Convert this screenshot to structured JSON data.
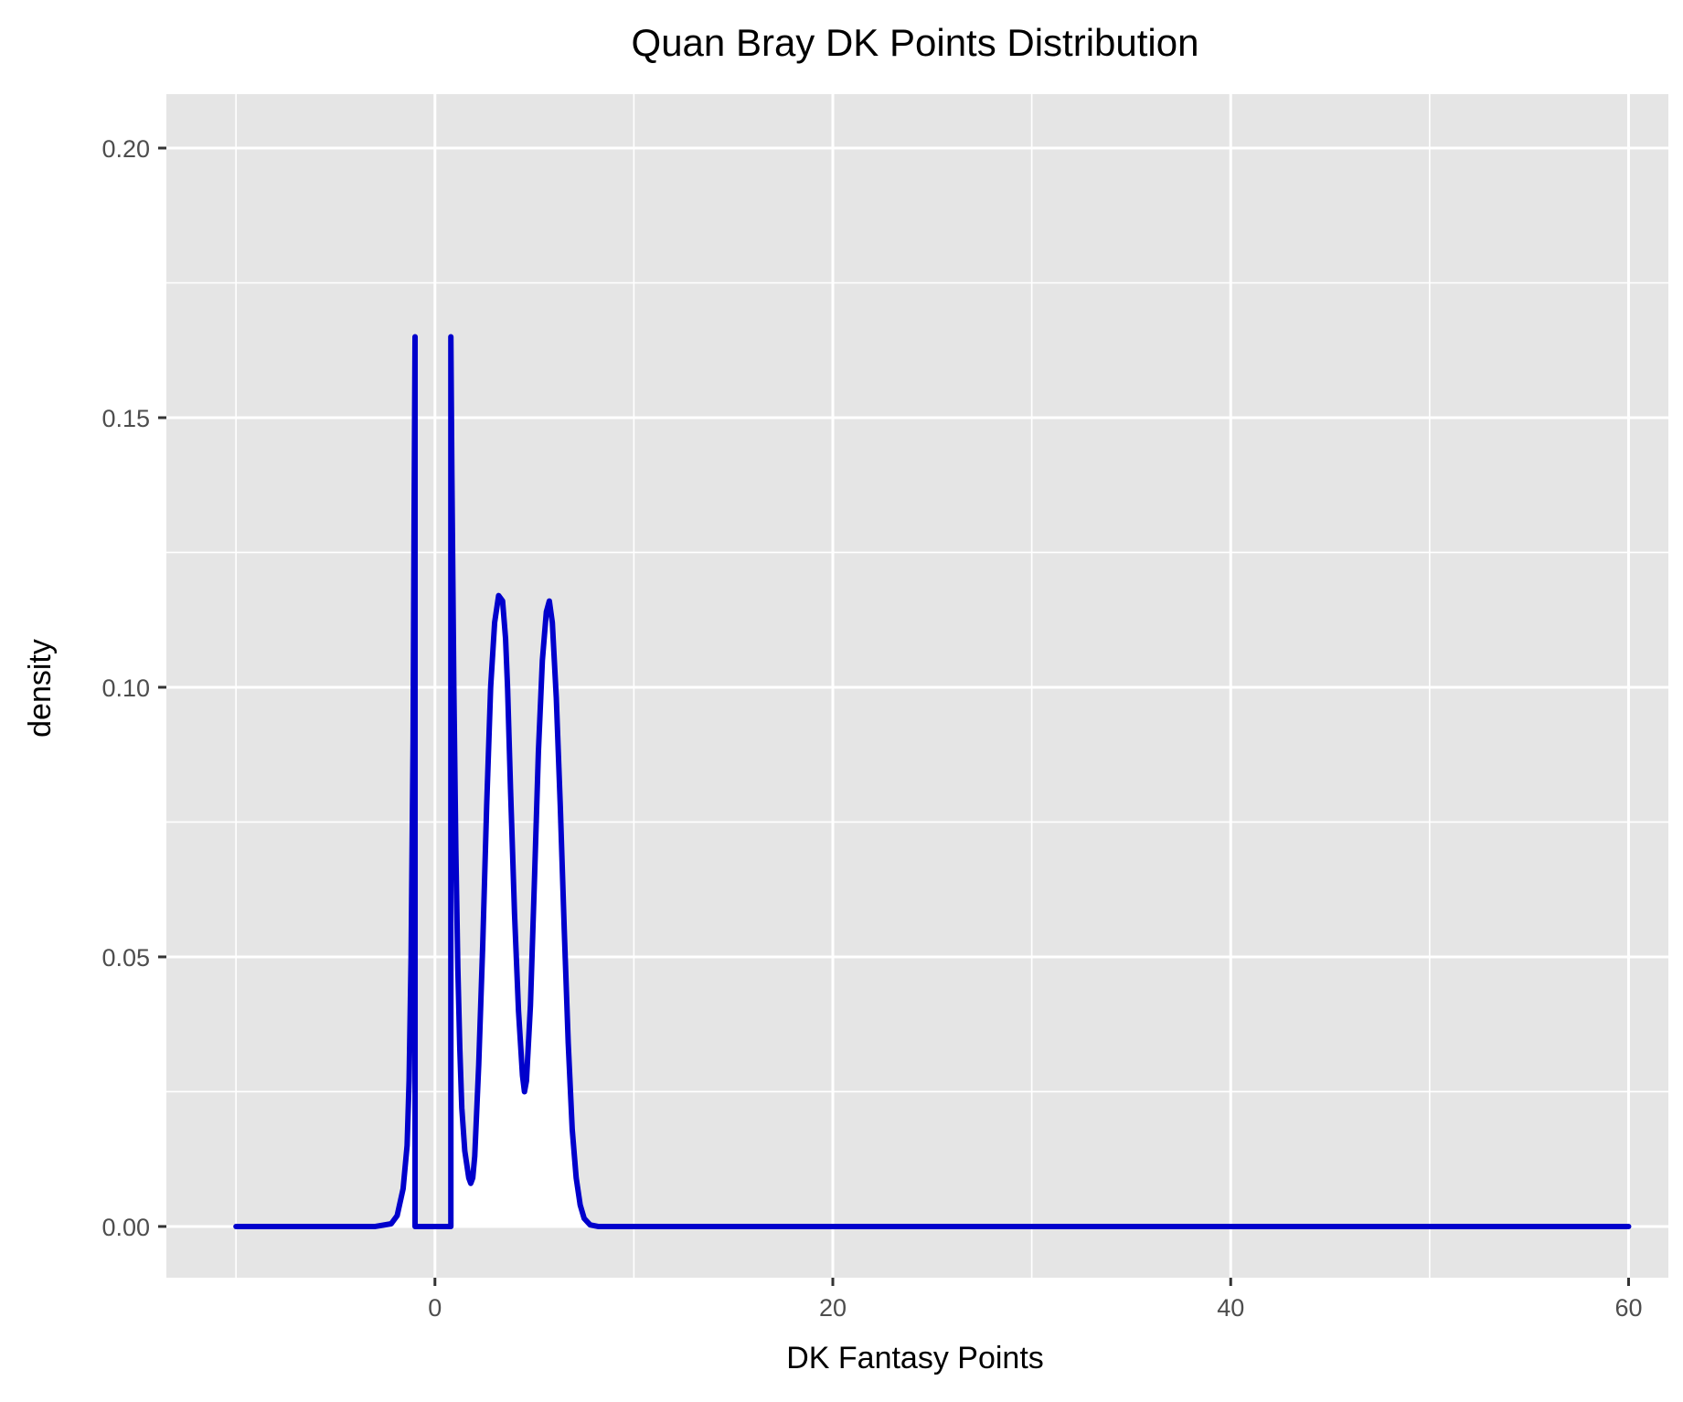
{
  "chart_data": {
    "type": "area",
    "title": "Quan Bray DK Points Distribution",
    "xlabel": "DK Fantasy Points",
    "ylabel": "density",
    "xlim": [
      -13.5,
      62
    ],
    "ylim": [
      -0.0095,
      0.21
    ],
    "x_ticks": [
      0,
      20,
      40,
      60
    ],
    "x_tick_labels": [
      "0",
      "20",
      "40",
      "60"
    ],
    "x_minor_ticks": [
      -10,
      10,
      30,
      50
    ],
    "y_ticks": [
      0.0,
      0.05,
      0.1,
      0.15,
      0.2
    ],
    "y_tick_labels": [
      "0.00",
      "0.05",
      "0.10",
      "0.15",
      "0.20"
    ],
    "y_minor_ticks": [
      0.025,
      0.075,
      0.125,
      0.175
    ],
    "grid": true,
    "legend": "none",
    "colors": {
      "panel_background": "#e5e5e5",
      "grid": "#ffffff",
      "line": "#0000cc",
      "fill": "#ffffff",
      "tick_text": "#4d4d4d",
      "tick_mark": "#333333"
    },
    "series": [
      {
        "x": [
          -10,
          -3,
          -2.2,
          -1.9,
          -1.6,
          -1.4,
          -1.3,
          -1.2,
          -1.1,
          -1.05,
          -1.0,
          -1.0,
          0.8,
          0.8,
          0.85,
          0.95,
          1.05,
          1.15,
          1.25,
          1.35,
          1.5,
          1.7,
          1.8,
          1.9,
          2.0,
          2.2,
          2.4,
          2.6,
          2.8,
          3.0,
          3.2,
          3.4,
          3.55,
          3.65,
          3.8,
          4.0,
          4.2,
          4.4,
          4.5,
          4.6,
          4.8,
          5.0,
          5.2,
          5.4,
          5.6,
          5.75,
          5.9,
          6.1,
          6.3,
          6.5,
          6.7,
          6.9,
          7.1,
          7.3,
          7.5,
          7.8,
          8.2,
          9,
          20,
          40,
          60
        ],
        "y": [
          0.0,
          0.0,
          0.0005,
          0.002,
          0.007,
          0.015,
          0.027,
          0.05,
          0.09,
          0.13,
          0.165,
          0.0,
          0.0,
          0.165,
          0.14,
          0.1,
          0.07,
          0.048,
          0.033,
          0.022,
          0.014,
          0.009,
          0.008,
          0.009,
          0.013,
          0.03,
          0.052,
          0.078,
          0.1,
          0.112,
          0.117,
          0.116,
          0.109,
          0.1,
          0.081,
          0.058,
          0.04,
          0.028,
          0.025,
          0.027,
          0.041,
          0.064,
          0.088,
          0.105,
          0.114,
          0.116,
          0.112,
          0.098,
          0.078,
          0.055,
          0.034,
          0.018,
          0.009,
          0.004,
          0.0015,
          0.0003,
          0.0,
          0.0,
          0.0,
          0.0,
          0.0
        ]
      }
    ]
  }
}
